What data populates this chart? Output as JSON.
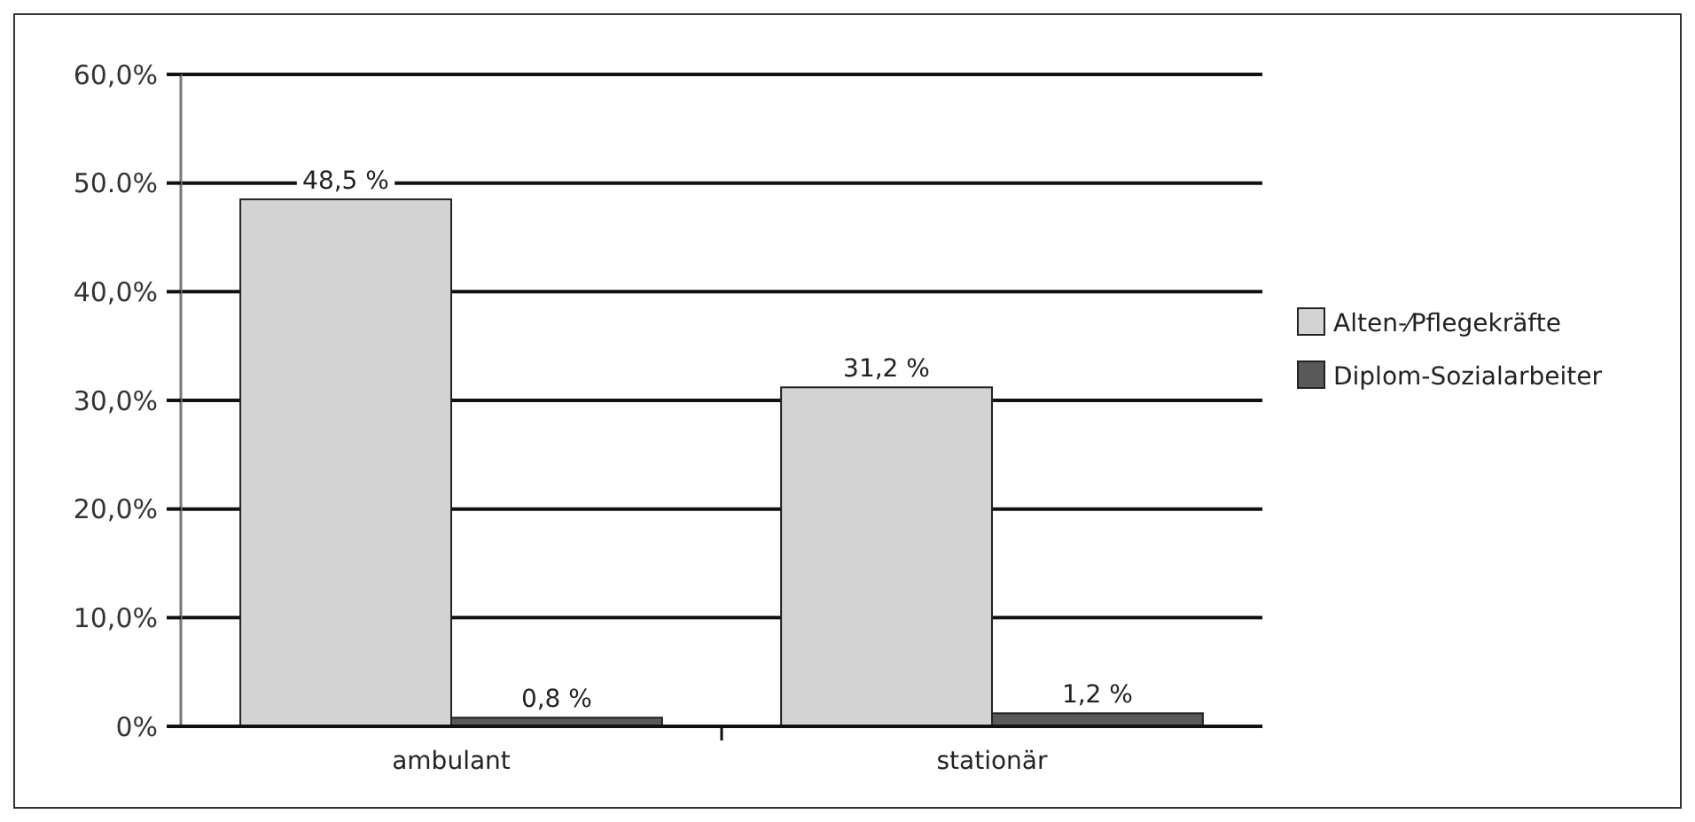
{
  "chart_data": {
    "type": "bar",
    "categories": [
      "ambulant",
      "stationär"
    ],
    "series": [
      {
        "name": "Alten-⁄Pflegekräfte",
        "color": "#d3d3d3",
        "values": [
          48.5,
          31.2
        ],
        "value_labels": [
          "48,5 %",
          "31,2 %"
        ]
      },
      {
        "name": "Diplom-Sozialarbeiter",
        "color": "#595959",
        "values": [
          0.8,
          1.2
        ],
        "value_labels": [
          "0,8 %",
          "1,2 %"
        ]
      }
    ],
    "ylim": [
      0,
      60
    ],
    "yticks": [
      {
        "value": 0,
        "label": "0%"
      },
      {
        "value": 10,
        "label": "10,0%"
      },
      {
        "value": 20,
        "label": "20,0%"
      },
      {
        "value": 30,
        "label": "30,0%"
      },
      {
        "value": 40,
        "label": "40,0%"
      },
      {
        "value": 50,
        "label": "50.0%"
      },
      {
        "value": 60,
        "label": "60,0%"
      }
    ],
    "grid": "y",
    "legend": "right"
  }
}
